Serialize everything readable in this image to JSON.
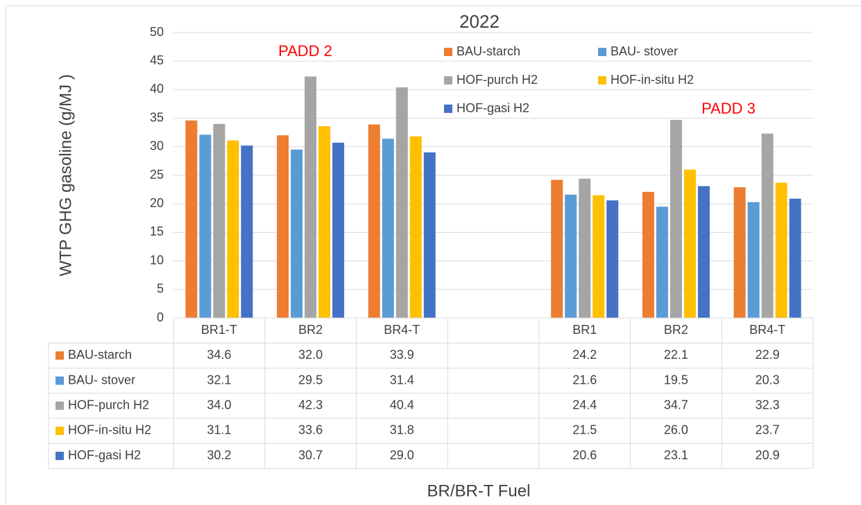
{
  "chart_data": {
    "type": "bar",
    "title": "2022",
    "y_label": "WTP GHG gasoline  (g/MJ )",
    "x_label": "BR/BR-T Fuel",
    "annotations": [
      "PADD 2",
      "PADD 3"
    ],
    "annotation_color": "#FF0000",
    "categories": [
      "BR1-T",
      "BR2",
      "BR4-T",
      null,
      "BR1",
      "BR2",
      "BR4-T"
    ],
    "series": [
      {
        "name": "BAU-starch",
        "color": "#ED7D31",
        "values": [
          34.6,
          32.0,
          33.9,
          null,
          24.2,
          22.1,
          22.9
        ],
        "value_labels": [
          "34.6",
          "32.0",
          "33.9",
          null,
          "24.2",
          "22.1",
          "22.9"
        ]
      },
      {
        "name": "BAU- stover",
        "color": "#5B9BD5",
        "values": [
          32.1,
          29.5,
          31.4,
          null,
          21.6,
          19.5,
          20.3
        ],
        "value_labels": [
          "32.1",
          "29.5",
          "31.4",
          null,
          "21.6",
          "19.5",
          "20.3"
        ]
      },
      {
        "name": "HOF-purch H2",
        "color": "#A5A5A5",
        "values": [
          34.0,
          42.3,
          40.4,
          null,
          24.4,
          34.7,
          32.3
        ],
        "value_labels": [
          "34.0",
          "42.3",
          "40.4",
          null,
          "24.4",
          "34.7",
          "32.3"
        ]
      },
      {
        "name": "HOF-in-situ H2",
        "color": "#FFC000",
        "values": [
          31.1,
          33.6,
          31.8,
          null,
          21.5,
          26.0,
          23.7
        ],
        "value_labels": [
          "31.1",
          "33.6",
          "31.8",
          null,
          "21.5",
          "26.0",
          "23.7"
        ]
      },
      {
        "name": "HOF-gasi H2",
        "color": "#4472C4",
        "values": [
          30.2,
          30.7,
          29.0,
          null,
          20.6,
          23.1,
          20.9
        ],
        "value_labels": [
          "30.2",
          "30.7",
          "29.0",
          null,
          "20.6",
          "23.1",
          "20.9"
        ]
      }
    ],
    "ylim": [
      0,
      50
    ],
    "yticks": [
      0,
      5,
      10,
      15,
      20,
      25,
      30,
      35,
      40,
      45,
      50
    ],
    "grid": true,
    "legend": "top-right",
    "data_table": true
  }
}
